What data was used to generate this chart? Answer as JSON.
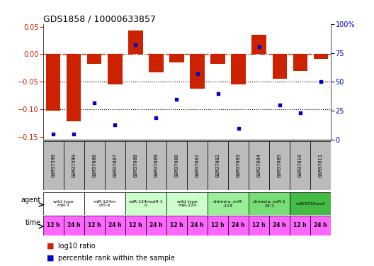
{
  "title": "GDS1858 / 10000633857",
  "samples": [
    "GSM37598",
    "GSM37599",
    "GSM37606",
    "GSM37607",
    "GSM37608",
    "GSM37609",
    "GSM37600",
    "GSM37601",
    "GSM37602",
    "GSM37603",
    "GSM37604",
    "GSM37605",
    "GSM37610",
    "GSM37611"
  ],
  "bar_values": [
    -0.103,
    -0.122,
    -0.018,
    -0.055,
    0.043,
    -0.033,
    -0.015,
    -0.062,
    -0.018,
    -0.055,
    0.036,
    -0.045,
    -0.03,
    -0.008
  ],
  "blue_values": [
    5,
    5,
    32,
    13,
    82,
    19,
    35,
    57,
    40,
    10,
    80,
    30,
    23,
    50
  ],
  "ylim_left": [
    -0.155,
    0.055
  ],
  "ylim_right": [
    0,
    100
  ],
  "yticks_left": [
    -0.15,
    -0.1,
    -0.05,
    0,
    0.05
  ],
  "yticks_right": [
    0,
    25,
    50,
    75,
    100
  ],
  "hline_dotted": [
    -0.05,
    -0.1
  ],
  "agent_group_info": [
    {
      "cols": [
        0,
        1
      ],
      "label": "wild type\nmiR-1",
      "color": "#ffffff"
    },
    {
      "cols": [
        2,
        3
      ],
      "label": "miR-124m\nut5-6",
      "color": "#ffffff"
    },
    {
      "cols": [
        4,
        5
      ],
      "label": "miR-124mut9-1\n0",
      "color": "#ccffcc"
    },
    {
      "cols": [
        6,
        7
      ],
      "label": "wild type\nmiR-124",
      "color": "#ccffcc"
    },
    {
      "cols": [
        8,
        9
      ],
      "label": "chimera_miR-\n-124",
      "color": "#99ee99"
    },
    {
      "cols": [
        10,
        11
      ],
      "label": "chimera_miR-1\n24-1",
      "color": "#77dd77"
    },
    {
      "cols": [
        12,
        13
      ],
      "label": "miR373/hes3",
      "color": "#44bb44"
    }
  ],
  "time_labels": [
    "12 h",
    "24 h",
    "12 h",
    "24 h",
    "12 h",
    "24 h",
    "12 h",
    "24 h",
    "12 h",
    "24 h",
    "12 h",
    "24 h",
    "12 h",
    "24 h"
  ],
  "time_color": "#ff66ff",
  "sample_color": "#bbbbbb",
  "bar_color": "#cc2200",
  "blue_color": "#0000cc",
  "legend_red": "log10 ratio",
  "legend_blue": "percentile rank within the sample"
}
